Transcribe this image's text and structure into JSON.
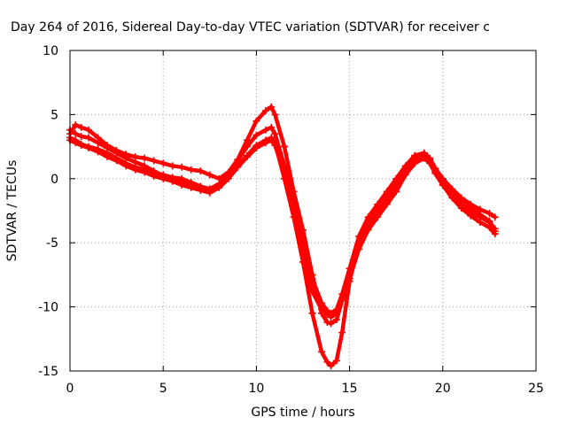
{
  "chart_data": {
    "type": "scatter",
    "title": "Day 264 of 2016, Sidereal Day-to-day VTEC variation (SDTVAR) for receiver c",
    "xlabel": "GPS time / hours",
    "ylabel": "SDTVAR / TECUs",
    "xlim": [
      0,
      25
    ],
    "ylim": [
      -15,
      10
    ],
    "xticks": [
      0,
      5,
      10,
      15,
      20,
      25
    ],
    "yticks": [
      -15,
      -10,
      -5,
      0,
      5,
      10
    ],
    "xtick_labels": [
      "0",
      "5",
      "10",
      "15",
      "20",
      "25"
    ],
    "ytick_labels": [
      "-15",
      "-10",
      "-5",
      "0",
      "5",
      "10"
    ],
    "grid": true,
    "marker": "plus",
    "color": "#ff0000",
    "series": [
      {
        "x": [
          0.0,
          0.3,
          0.6,
          1.0,
          1.5,
          2.0,
          2.5,
          3.0,
          3.5,
          4.0,
          4.5,
          5.0,
          5.5,
          6.0,
          6.5,
          7.0,
          7.5,
          8.0,
          8.5,
          9.0,
          9.5,
          10.0,
          10.5,
          10.8,
          11.0,
          11.5,
          12.0,
          12.5,
          13.0,
          13.5,
          13.8,
          14.0,
          14.3,
          14.6,
          15.0,
          15.5,
          16.0,
          16.5,
          17.0,
          17.5,
          18.0,
          18.5,
          19.0,
          19.3,
          19.6,
          20.0,
          20.5,
          21.0,
          21.5,
          22.0,
          22.5,
          22.8
        ],
        "y": [
          3.5,
          4.2,
          4.0,
          3.8,
          3.2,
          2.6,
          2.2,
          1.9,
          1.7,
          1.6,
          1.4,
          1.2,
          1.0,
          0.9,
          0.7,
          0.6,
          0.3,
          0.0,
          0.5,
          1.5,
          3.0,
          4.5,
          5.3,
          5.6,
          5.0,
          2.5,
          -1.0,
          -4.0,
          -7.5,
          -10.5,
          -11.2,
          -11.3,
          -11.0,
          -9.5,
          -7.5,
          -5.0,
          -3.5,
          -2.5,
          -1.5,
          -0.5,
          0.8,
          1.8,
          2.0,
          1.5,
          0.6,
          -0.2,
          -1.0,
          -1.6,
          -2.2,
          -2.8,
          -3.3,
          -4.1
        ]
      },
      {
        "x": [
          0.0,
          0.3,
          0.6,
          1.0,
          1.5,
          2.0,
          2.5,
          3.0,
          3.5,
          4.0,
          4.5,
          5.0,
          5.5,
          6.0,
          6.5,
          7.0,
          7.5,
          8.0,
          8.5,
          9.0,
          9.5,
          10.0,
          10.5,
          10.8,
          11.0,
          11.5,
          12.0,
          12.5,
          13.0,
          13.5,
          13.8,
          14.0,
          14.3,
          14.6,
          15.0,
          15.5,
          16.0,
          16.5,
          17.0,
          17.5,
          18.0,
          18.5,
          19.0,
          19.3,
          19.6,
          20.0,
          20.5,
          21.0,
          21.5,
          22.0,
          22.5,
          22.8
        ],
        "y": [
          3.2,
          3.0,
          2.7,
          2.5,
          2.3,
          2.0,
          1.6,
          1.2,
          0.9,
          0.7,
          0.5,
          0.3,
          0.1,
          0.0,
          -0.3,
          -0.6,
          -0.9,
          -0.5,
          0.3,
          1.4,
          2.5,
          3.4,
          3.8,
          4.0,
          3.5,
          1.0,
          -2.0,
          -4.8,
          -7.8,
          -9.7,
          -10.3,
          -10.5,
          -10.2,
          -9.0,
          -7.0,
          -4.5,
          -3.0,
          -2.0,
          -1.0,
          0.0,
          1.0,
          1.8,
          2.0,
          1.6,
          0.8,
          0.0,
          -0.8,
          -1.5,
          -2.0,
          -2.4,
          -2.7,
          -3.0
        ]
      },
      {
        "x": [
          0.0,
          0.3,
          0.6,
          1.0,
          1.5,
          2.0,
          2.5,
          3.0,
          3.5,
          4.0,
          4.5,
          5.0,
          5.5,
          6.0,
          6.5,
          7.0,
          7.5,
          8.0,
          8.5,
          9.0,
          9.5,
          10.0,
          10.5,
          10.8,
          11.0,
          11.5,
          12.0,
          12.5,
          13.0,
          13.5,
          13.8,
          14.0,
          14.3,
          14.6,
          15.0,
          15.5,
          16.0,
          16.5,
          17.0,
          17.5,
          18.0,
          18.5,
          19.0,
          19.3,
          19.6,
          20.0,
          20.5,
          21.0,
          21.5,
          22.0,
          22.5,
          22.8
        ],
        "y": [
          3.8,
          3.5,
          3.3,
          3.2,
          2.8,
          2.4,
          2.0,
          1.6,
          1.3,
          1.0,
          0.6,
          0.2,
          -0.1,
          -0.3,
          -0.4,
          -0.6,
          -0.8,
          -0.4,
          0.2,
          1.0,
          1.8,
          2.6,
          3.0,
          3.2,
          2.8,
          0.0,
          -3.0,
          -6.5,
          -10.5,
          -13.5,
          -14.3,
          -14.6,
          -14.2,
          -12.0,
          -8.0,
          -5.0,
          -3.5,
          -2.5,
          -1.5,
          -0.6,
          0.6,
          1.5,
          1.8,
          1.3,
          0.5,
          -0.5,
          -1.5,
          -2.3,
          -2.9,
          -3.4,
          -3.8,
          -4.3
        ]
      },
      {
        "x": [
          0.0,
          0.3,
          0.6,
          1.0,
          1.5,
          2.0,
          2.5,
          3.0,
          3.5,
          4.0,
          4.5,
          5.0,
          5.5,
          6.0,
          6.5,
          7.0,
          7.5,
          8.0,
          8.5,
          9.0,
          9.5,
          10.0,
          10.5,
          10.8,
          11.0,
          11.5,
          12.0,
          12.5,
          13.0,
          13.5,
          13.8,
          14.0,
          14.3,
          14.6,
          15.0,
          15.5,
          16.0,
          16.5,
          17.0,
          17.5,
          18.0,
          18.5,
          19.0,
          19.3,
          19.6,
          20.0,
          20.5,
          21.0,
          21.5,
          22.0,
          22.5,
          22.8
        ],
        "y": [
          3.0,
          2.8,
          2.6,
          2.4,
          2.1,
          1.7,
          1.4,
          1.0,
          0.7,
          0.5,
          0.2,
          0.0,
          -0.2,
          -0.5,
          -0.7,
          -0.9,
          -1.1,
          -0.7,
          0.0,
          0.9,
          1.7,
          2.4,
          2.8,
          3.0,
          2.6,
          0.5,
          -2.5,
          -5.8,
          -8.8,
          -10.2,
          -10.6,
          -10.8,
          -10.5,
          -9.5,
          -7.8,
          -5.5,
          -4.0,
          -3.0,
          -2.0,
          -1.0,
          0.3,
          1.2,
          1.6,
          1.2,
          0.4,
          -0.5,
          -1.3,
          -2.0,
          -2.6,
          -3.0,
          -3.4,
          -3.9
        ]
      }
    ]
  }
}
